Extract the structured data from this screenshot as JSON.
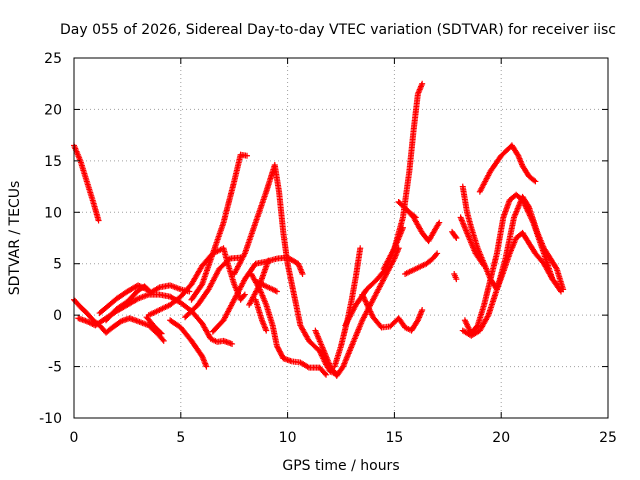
{
  "chart_data": {
    "type": "scatter",
    "title": "Day 055 of 2026, Sidereal Day-to-day VTEC variation (SDTVAR) for receiver iisc",
    "xlabel": "GPS time / hours",
    "ylabel": "SDTVAR / TECUs",
    "xlim": [
      0,
      25
    ],
    "ylim": [
      -10,
      25
    ],
    "x_ticks": [
      "0",
      "5",
      "10",
      "15",
      "20",
      "25"
    ],
    "y_ticks": [
      "-10",
      "-5",
      "0",
      "5",
      "10",
      "15",
      "20",
      "25"
    ],
    "grid": true,
    "marker": "+",
    "color": "#ff0000",
    "series": [
      {
        "name": "t1",
        "points": [
          [
            0,
            16.5
          ],
          [
            0.3,
            15
          ],
          [
            0.6,
            13
          ],
          [
            0.9,
            11
          ],
          [
            1.15,
            9.2
          ]
        ]
      },
      {
        "name": "t2",
        "points": [
          [
            0,
            1.5
          ],
          [
            0.3,
            0.8
          ],
          [
            0.6,
            0.2
          ],
          [
            0.9,
            -0.5
          ],
          [
            1.2,
            -1
          ],
          [
            1.5,
            -1.7
          ],
          [
            1.8,
            -1.2
          ],
          [
            2.2,
            -0.6
          ],
          [
            2.6,
            -0.3
          ],
          [
            3.0,
            -0.6
          ],
          [
            3.5,
            -1
          ],
          [
            4.0,
            -2
          ],
          [
            4.2,
            -2.5
          ]
        ]
      },
      {
        "name": "t3",
        "points": [
          [
            0.2,
            -0.3
          ],
          [
            0.6,
            -0.6
          ],
          [
            1,
            -1
          ],
          [
            1.5,
            -0.3
          ],
          [
            2,
            0.4
          ],
          [
            2.5,
            1
          ],
          [
            3,
            1.6
          ],
          [
            3.5,
            2
          ],
          [
            4,
            2
          ],
          [
            4.5,
            1.8
          ],
          [
            5,
            1.2
          ],
          [
            5.5,
            0.4
          ],
          [
            6,
            -0.8
          ],
          [
            6.4,
            -2.3
          ],
          [
            6.7,
            -2.6
          ],
          [
            7,
            -2.5
          ],
          [
            7.4,
            -2.8
          ]
        ]
      },
      {
        "name": "t4",
        "points": [
          [
            1.5,
            -0.5
          ],
          [
            2,
            0.6
          ],
          [
            2.5,
            1.3
          ],
          [
            3,
            2.4
          ],
          [
            3.3,
            2.8
          ],
          [
            3.6,
            2.2
          ],
          [
            4,
            2.7
          ],
          [
            4.5,
            2.9
          ],
          [
            5,
            2.5
          ],
          [
            5.4,
            2.3
          ]
        ]
      },
      {
        "name": "t5",
        "points": [
          [
            1.2,
            0.2
          ],
          [
            1.6,
            0.9
          ],
          [
            2,
            1.6
          ],
          [
            2.5,
            2.3
          ],
          [
            3,
            2.9
          ],
          [
            3.4,
            2.5
          ]
        ]
      },
      {
        "name": "t6",
        "points": [
          [
            3.5,
            0
          ],
          [
            4,
            0.5
          ],
          [
            4.5,
            1
          ],
          [
            5,
            1.8
          ],
          [
            5.5,
            3
          ],
          [
            6,
            4.8
          ],
          [
            6.5,
            6
          ],
          [
            7,
            6.5
          ],
          [
            7.2,
            5
          ],
          [
            7.5,
            3
          ],
          [
            7.8,
            1.5
          ],
          [
            8,
            2
          ]
        ]
      },
      {
        "name": "t7",
        "points": [
          [
            3.4,
            -0.2
          ],
          [
            3.8,
            -1.2
          ],
          [
            4.1,
            -1.8
          ]
        ]
      },
      {
        "name": "t8",
        "points": [
          [
            4.5,
            -0.5
          ],
          [
            5.0,
            -1.2
          ],
          [
            5.5,
            -2.5
          ],
          [
            6.0,
            -4
          ],
          [
            6.2,
            -5
          ]
        ]
      },
      {
        "name": "t9",
        "points": [
          [
            5.5,
            1.5
          ],
          [
            6,
            3
          ],
          [
            6.5,
            6
          ],
          [
            7,
            9
          ],
          [
            7.5,
            13
          ],
          [
            7.8,
            15.6
          ],
          [
            8.1,
            15.5
          ]
        ]
      },
      {
        "name": "t10",
        "points": [
          [
            5.2,
            -0.2
          ],
          [
            5.8,
            1
          ],
          [
            6.3,
            2.5
          ],
          [
            6.8,
            4.5
          ],
          [
            7.3,
            5.5
          ],
          [
            7.8,
            5.6
          ]
        ]
      },
      {
        "name": "t11",
        "points": [
          [
            6.5,
            -1.6
          ],
          [
            7,
            -0.5
          ],
          [
            7.5,
            1.5
          ],
          [
            8,
            3.5
          ],
          [
            8.5,
            5
          ],
          [
            9,
            5.2
          ],
          [
            9.5,
            5.5
          ],
          [
            10,
            5.6
          ],
          [
            10.5,
            5
          ],
          [
            10.7,
            4
          ]
        ]
      },
      {
        "name": "t12",
        "points": [
          [
            7.5,
            4
          ],
          [
            8,
            6
          ],
          [
            8.5,
            9
          ],
          [
            9,
            12
          ],
          [
            9.4,
            14.6
          ],
          [
            9.6,
            12
          ],
          [
            9.8,
            8
          ],
          [
            10,
            5
          ],
          [
            10.3,
            2
          ],
          [
            10.6,
            -1
          ],
          [
            11,
            -2.5
          ],
          [
            11.5,
            -3.5
          ],
          [
            11.8,
            -4.8
          ],
          [
            12,
            -5.5
          ],
          [
            12.3,
            -5.7
          ]
        ]
      },
      {
        "name": "t13",
        "points": [
          [
            8.5,
            1.5
          ],
          [
            8.8,
            -0.5
          ],
          [
            9,
            -1.5
          ]
        ]
      },
      {
        "name": "t14",
        "points": [
          [
            8.2,
            1
          ],
          [
            8.7,
            3
          ],
          [
            9.1,
            5.3
          ]
        ]
      },
      {
        "name": "t15",
        "points": [
          [
            8.3,
            4
          ],
          [
            8.7,
            2.5
          ],
          [
            9,
            1
          ],
          [
            9.3,
            -1
          ],
          [
            9.5,
            -3
          ],
          [
            9.8,
            -4.2
          ],
          [
            10.2,
            -4.5
          ],
          [
            10.6,
            -4.6
          ],
          [
            11,
            -5.1
          ],
          [
            11.5,
            -5.1
          ],
          [
            11.8,
            -5.8
          ]
        ]
      },
      {
        "name": "t16",
        "points": [
          [
            8.6,
            3.2
          ],
          [
            9,
            2.8
          ],
          [
            9.3,
            2.5
          ],
          [
            9.5,
            2.3
          ]
        ]
      },
      {
        "name": "t17",
        "points": [
          [
            11.3,
            -1.5
          ],
          [
            11.6,
            -3
          ],
          [
            12,
            -5
          ],
          [
            12.3,
            -5.9
          ],
          [
            12.6,
            -5
          ],
          [
            13,
            -3
          ],
          [
            13.5,
            -0.5
          ],
          [
            14,
            1.5
          ],
          [
            14.5,
            3.5
          ],
          [
            15,
            5.5
          ],
          [
            15.2,
            6.5
          ]
        ]
      },
      {
        "name": "t18",
        "points": [
          [
            12.2,
            -5
          ],
          [
            12.5,
            -3
          ],
          [
            12.8,
            -0.5
          ],
          [
            13,
            1.5
          ],
          [
            13.2,
            3.8
          ],
          [
            13.4,
            6.5
          ]
        ]
      },
      {
        "name": "t19",
        "points": [
          [
            12.7,
            -1
          ],
          [
            13.2,
            1
          ],
          [
            13.7,
            2.5
          ],
          [
            14.2,
            3.5
          ],
          [
            14.6,
            4.5
          ],
          [
            15,
            6.5
          ],
          [
            15.4,
            8.5
          ]
        ]
      },
      {
        "name": "t20",
        "points": [
          [
            13.5,
            2
          ],
          [
            14,
            -0.2
          ],
          [
            14.4,
            -1.2
          ],
          [
            14.8,
            -1.1
          ],
          [
            15.2,
            -0.3
          ],
          [
            15.5,
            -1.2
          ],
          [
            15.8,
            -1.5
          ],
          [
            16.1,
            -0.5
          ],
          [
            16.3,
            0.5
          ]
        ]
      },
      {
        "name": "t21",
        "points": [
          [
            14.5,
            4.5
          ],
          [
            15,
            6.5
          ],
          [
            15.4,
            9.5
          ],
          [
            15.7,
            14
          ],
          [
            15.9,
            18
          ],
          [
            16.1,
            21.5
          ],
          [
            16.3,
            22.5
          ]
        ]
      },
      {
        "name": "t22",
        "points": [
          [
            15.2,
            11
          ],
          [
            15.6,
            10.2
          ],
          [
            15.9,
            9.5
          ],
          [
            16.3,
            8
          ],
          [
            16.6,
            7.2
          ],
          [
            16.9,
            8.3
          ],
          [
            17.1,
            9
          ]
        ]
      },
      {
        "name": "t23",
        "points": [
          [
            15.2,
            11
          ],
          [
            15.7,
            10
          ],
          [
            16,
            9.5
          ]
        ]
      },
      {
        "name": "t24",
        "points": [
          [
            15.5,
            4
          ],
          [
            16,
            4.5
          ],
          [
            16.5,
            5
          ],
          [
            16.8,
            5.5
          ],
          [
            17,
            6
          ]
        ]
      },
      {
        "name": "t25",
        "points": [
          [
            17.7,
            8.1
          ],
          [
            17.9,
            7.5
          ]
        ]
      },
      {
        "name": "t26",
        "points": [
          [
            17.8,
            4
          ],
          [
            17.9,
            3.5
          ]
        ]
      },
      {
        "name": "t27",
        "points": [
          [
            18.2,
            12.5
          ],
          [
            18.4,
            10
          ],
          [
            18.6,
            8.5
          ],
          [
            18.9,
            6.5
          ],
          [
            19.2,
            5
          ],
          [
            19.5,
            3.5
          ],
          [
            19.8,
            2.5
          ],
          [
            20.1,
            4.2
          ],
          [
            20.4,
            6
          ],
          [
            20.7,
            7.5
          ],
          [
            21,
            8
          ],
          [
            21.3,
            7
          ],
          [
            21.6,
            6
          ],
          [
            22,
            5
          ],
          [
            22.4,
            3.5
          ],
          [
            22.6,
            3
          ]
        ]
      },
      {
        "name": "t28",
        "points": [
          [
            18.3,
            -0.5
          ],
          [
            18.6,
            -1.8
          ],
          [
            18.9,
            -1
          ],
          [
            19.2,
            1
          ],
          [
            19.5,
            3.5
          ],
          [
            19.8,
            6
          ],
          [
            20.1,
            9.5
          ],
          [
            20.4,
            11.2
          ],
          [
            20.7,
            11.7
          ],
          [
            21,
            11.2
          ],
          [
            21.5,
            9
          ],
          [
            22,
            6
          ],
          [
            22.4,
            3.5
          ],
          [
            22.8,
            2.3
          ]
        ]
      },
      {
        "name": "t29",
        "points": [
          [
            19,
            12
          ],
          [
            19.5,
            14
          ],
          [
            20,
            15.5
          ],
          [
            20.5,
            16.5
          ],
          [
            20.8,
            15.5
          ],
          [
            21,
            14.5
          ],
          [
            21.3,
            13.5
          ],
          [
            21.6,
            13
          ]
        ]
      },
      {
        "name": "t30",
        "points": [
          [
            18.2,
            -1.5
          ],
          [
            18.6,
            -2
          ],
          [
            19,
            -1.5
          ],
          [
            19.4,
            0
          ],
          [
            19.8,
            2.5
          ],
          [
            20.2,
            5.5
          ],
          [
            20.6,
            9.5
          ],
          [
            21,
            11.5
          ],
          [
            21.3,
            10.5
          ],
          [
            21.7,
            8
          ],
          [
            22,
            6.5
          ],
          [
            22.3,
            5.5
          ],
          [
            22.6,
            4.5
          ],
          [
            22.9,
            2.5
          ]
        ]
      },
      {
        "name": "t31",
        "points": [
          [
            18.1,
            9.5
          ],
          [
            18.5,
            7.5
          ],
          [
            18.8,
            6
          ],
          [
            19.2,
            4.8
          ]
        ]
      }
    ]
  }
}
